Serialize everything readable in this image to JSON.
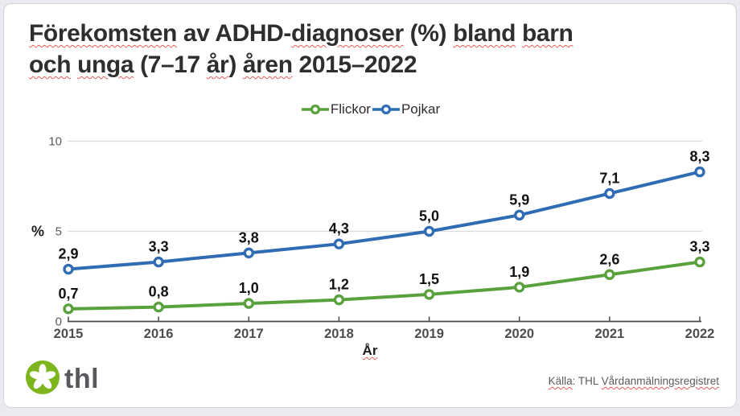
{
  "colors": {
    "flickor_green": "#58a13c",
    "pojkar_blue": "#2f6cb3",
    "logo_green": "#7db51d",
    "logo_text_gray": "#57585b",
    "gridline": "#dcdcdc",
    "axis": "#4a4a4a",
    "tick_label_gray": "#595959",
    "data_label": "#111111",
    "spellcheck_red": "#e45c5c"
  },
  "title": {
    "full_text": "Förekomsten av ADHD-diagnoser (%) bland barn och unga (7–17 år) åren 2015–2022",
    "lines": [
      {
        "segments": [
          {
            "text": "Förekomsten",
            "spellcheck_underline": true
          },
          {
            "text": " av ADHD-",
            "spellcheck_underline": false
          },
          {
            "text": "diagnoser",
            "spellcheck_underline": true
          },
          {
            "text": " (%) ",
            "spellcheck_underline": false
          },
          {
            "text": "bland",
            "spellcheck_underline": true
          },
          {
            "text": " ",
            "spellcheck_underline": false
          },
          {
            "text": "barn",
            "spellcheck_underline": true
          }
        ]
      },
      {
        "segments": [
          {
            "text": "och",
            "spellcheck_underline": true
          },
          {
            "text": " ",
            "spellcheck_underline": false
          },
          {
            "text": "unga",
            "spellcheck_underline": true
          },
          {
            "text": " (7–17 ",
            "spellcheck_underline": false
          },
          {
            "text": "år",
            "spellcheck_underline": true
          },
          {
            "text": ") ",
            "spellcheck_underline": false
          },
          {
            "text": "åren",
            "spellcheck_underline": true
          },
          {
            "text": " 2015–2022",
            "spellcheck_underline": false
          }
        ]
      }
    ]
  },
  "legend": {
    "items": [
      {
        "label": "Flickor",
        "color": "#58a13c"
      },
      {
        "label": "Pojkar",
        "color": "#2f6cb3"
      }
    ]
  },
  "chart_data": {
    "type": "line",
    "x": [
      2015,
      2016,
      2017,
      2018,
      2019,
      2020,
      2021,
      2022
    ],
    "series": [
      {
        "name": "Flickor",
        "color": "#58a13c",
        "values": [
          0.7,
          0.8,
          1.0,
          1.2,
          1.5,
          1.9,
          2.6,
          3.3
        ]
      },
      {
        "name": "Pojkar",
        "color": "#2f6cb3",
        "values": [
          2.9,
          3.3,
          3.8,
          4.3,
          5.0,
          5.9,
          7.1,
          8.3
        ]
      }
    ],
    "title": "Förekomsten av ADHD-diagnoser (%) bland barn och unga (7–17 år) åren 2015–2022",
    "xlabel": "År",
    "ylabel": "%",
    "ylim": [
      0,
      10
    ],
    "yticks": [
      0,
      5,
      10
    ],
    "grid": "horizontal",
    "legend_position": "top-center",
    "point_labels": true,
    "decimal_separator": ","
  },
  "footer": {
    "logo": {
      "text": "thl",
      "icon": "five-petal-flower"
    },
    "source_segments": [
      {
        "text": "Källa",
        "spellcheck_underline": true
      },
      {
        "text": ": THL ",
        "spellcheck_underline": false
      },
      {
        "text": "Vårdanmälningsregistret",
        "spellcheck_underline": true
      }
    ]
  }
}
